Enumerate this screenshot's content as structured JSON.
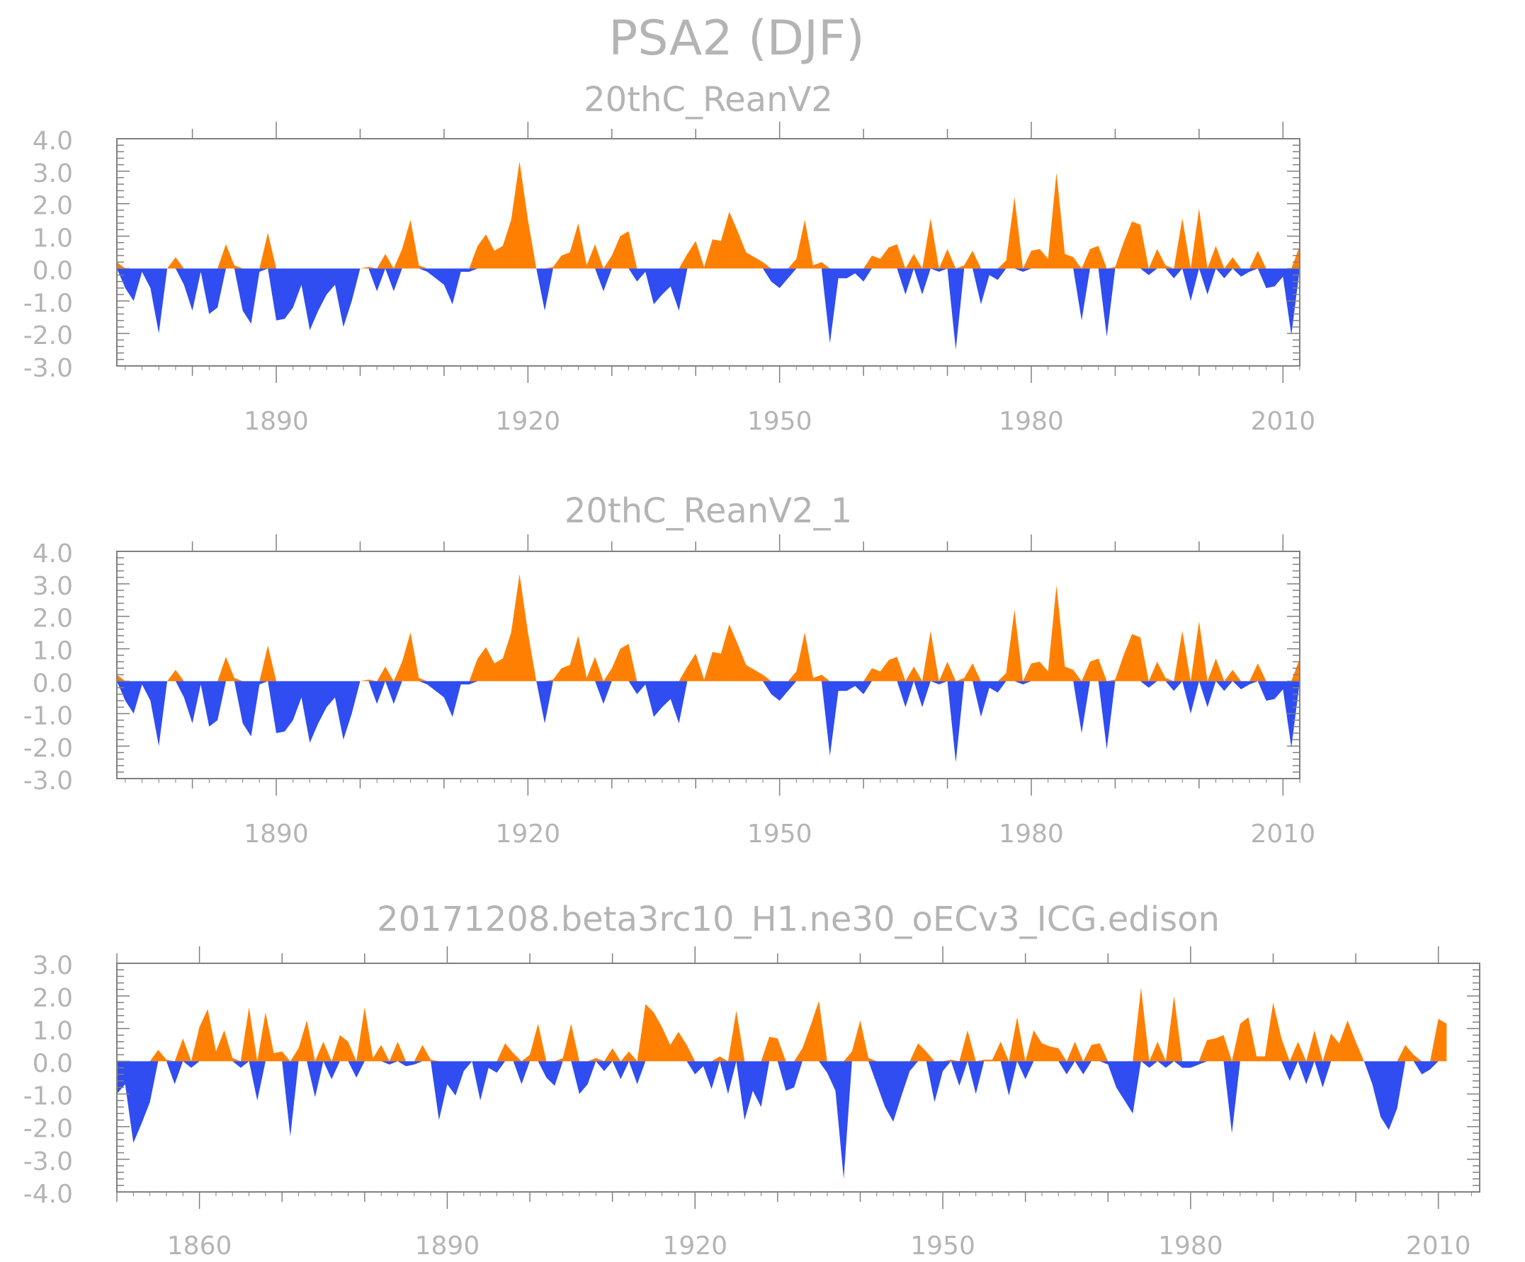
{
  "colors": {
    "positive": "#ff8000",
    "negative": "#2f4df0",
    "axis": "#808080",
    "text": "#b4b4b4"
  },
  "chart_data": {
    "type": "area",
    "title": "PSA2 (DJF)",
    "panels": [
      {
        "title": "20thC_ReanV2",
        "xlim": [
          1871,
          2012
        ],
        "ylim": [
          -3.0,
          4.0
        ],
        "yticks": [
          "4.0",
          "3.0",
          "2.0",
          "1.0",
          "0.0",
          "-1.0",
          "-2.0",
          "-3.0"
        ],
        "xtick_labels": [
          "1890",
          "1920",
          "1950",
          "1980",
          "2010"
        ],
        "x_start": 1871,
        "values": [
          0.2,
          -0.6,
          -1.0,
          -0.1,
          -0.6,
          -2.0,
          0.0,
          0.35,
          -0.5,
          -1.3,
          -0.1,
          -1.4,
          -1.2,
          0.75,
          0.1,
          -1.3,
          -1.7,
          -0.1,
          1.1,
          -1.6,
          -1.55,
          -1.2,
          -0.5,
          -1.9,
          -1.3,
          -0.8,
          -0.5,
          -1.8,
          -1.0,
          0.0,
          0.05,
          -0.7,
          0.45,
          -0.7,
          0.6,
          1.5,
          0.1,
          -0.1,
          -0.3,
          -0.5,
          -1.1,
          -0.1,
          -0.1,
          0.7,
          1.05,
          0.55,
          0.7,
          1.5,
          3.3,
          1.5,
          0.0,
          -1.3,
          0.05,
          0.4,
          0.5,
          1.4,
          0.1,
          0.75,
          -0.7,
          0.4,
          1.0,
          1.15,
          -0.4,
          -0.1,
          -1.1,
          -0.8,
          -0.55,
          -1.3,
          0.45,
          0.85,
          0.05,
          0.9,
          0.85,
          1.75,
          1.15,
          0.5,
          0.35,
          0.2,
          -0.4,
          -0.6,
          -0.3,
          0.3,
          1.5,
          0.1,
          0.2,
          -2.3,
          -0.3,
          -0.3,
          -0.15,
          -0.4,
          0.4,
          0.3,
          0.65,
          0.75,
          -0.8,
          0.45,
          -0.8,
          1.55,
          -0.1,
          0.6,
          -2.5,
          0.1,
          0.55,
          -1.1,
          -0.2,
          -0.35,
          0.25,
          2.2,
          -0.1,
          0.55,
          0.6,
          0.3,
          2.95,
          0.45,
          0.35,
          -1.6,
          0.6,
          0.7,
          -2.1,
          0.05,
          0.8,
          1.45,
          1.35,
          -0.2,
          0.6,
          0.1,
          -0.3,
          1.55,
          -1.0,
          1.85,
          -0.8,
          0.7,
          -0.3,
          0.35,
          -0.25,
          -0.1,
          0.55,
          -0.6,
          -0.55,
          -0.25,
          -2.05,
          0.7
        ]
      },
      {
        "title": "20thC_ReanV2_1",
        "xlim": [
          1871,
          2012
        ],
        "ylim": [
          -3.0,
          4.0
        ],
        "yticks": [
          "4.0",
          "3.0",
          "2.0",
          "1.0",
          "0.0",
          "-1.0",
          "-2.0",
          "-3.0"
        ],
        "xtick_labels": [
          "1890",
          "1920",
          "1950",
          "1980",
          "2010"
        ],
        "x_start": 1871,
        "values": [
          0.2,
          -0.6,
          -1.0,
          -0.1,
          -0.6,
          -2.0,
          0.0,
          0.35,
          -0.5,
          -1.3,
          -0.1,
          -1.4,
          -1.2,
          0.75,
          0.1,
          -1.3,
          -1.7,
          -0.1,
          1.1,
          -1.6,
          -1.55,
          -1.2,
          -0.5,
          -1.9,
          -1.3,
          -0.8,
          -0.5,
          -1.8,
          -1.0,
          0.0,
          0.05,
          -0.7,
          0.45,
          -0.7,
          0.6,
          1.5,
          0.1,
          -0.1,
          -0.3,
          -0.5,
          -1.1,
          -0.1,
          -0.1,
          0.7,
          1.05,
          0.55,
          0.7,
          1.5,
          3.3,
          1.5,
          0.0,
          -1.3,
          0.05,
          0.4,
          0.5,
          1.4,
          0.1,
          0.75,
          -0.7,
          0.4,
          1.0,
          1.15,
          -0.4,
          -0.1,
          -1.1,
          -0.8,
          -0.55,
          -1.3,
          0.45,
          0.85,
          0.05,
          0.9,
          0.85,
          1.75,
          1.15,
          0.5,
          0.35,
          0.2,
          -0.4,
          -0.6,
          -0.3,
          0.3,
          1.5,
          0.1,
          0.2,
          -2.3,
          -0.3,
          -0.3,
          -0.15,
          -0.4,
          0.4,
          0.3,
          0.65,
          0.75,
          -0.8,
          0.45,
          -0.8,
          1.55,
          -0.1,
          0.6,
          -2.5,
          0.1,
          0.55,
          -1.1,
          -0.2,
          -0.35,
          0.25,
          2.2,
          -0.1,
          0.55,
          0.6,
          0.3,
          2.95,
          0.45,
          0.35,
          -1.6,
          0.6,
          0.7,
          -2.1,
          0.05,
          0.8,
          1.45,
          1.35,
          -0.2,
          0.6,
          0.1,
          -0.3,
          1.55,
          -1.0,
          1.85,
          -0.8,
          0.7,
          -0.3,
          0.35,
          -0.25,
          -0.1,
          0.55,
          -0.6,
          -0.55,
          -0.25,
          -2.05,
          0.7
        ]
      },
      {
        "title": "20171208.beta3rc10_H1.ne30_oECv3_ICG.edison",
        "xlim": [
          1850,
          2015
        ],
        "ylim": [
          -4.0,
          3.0
        ],
        "yticks": [
          "3.0",
          "2.0",
          "1.0",
          "0.0",
          "-1.0",
          "-2.0",
          "-3.0",
          "-4.0"
        ],
        "xtick_labels": [
          "1860",
          "1890",
          "1920",
          "1950",
          "1980",
          "2010"
        ],
        "x_start": 1850,
        "values": [
          -1.0,
          -0.7,
          -2.5,
          -1.9,
          -1.25,
          0.35,
          0.05,
          -0.7,
          0.7,
          -0.2,
          1.05,
          1.6,
          0.3,
          0.95,
          0.1,
          -0.2,
          1.65,
          -1.2,
          1.5,
          0.25,
          0.3,
          -2.3,
          0.4,
          1.25,
          -1.1,
          0.6,
          -0.55,
          0.8,
          0.6,
          -0.5,
          1.65,
          0.1,
          0.5,
          -0.1,
          0.6,
          -0.15,
          -0.1,
          0.5,
          0.05,
          -1.8,
          -0.7,
          -1.05,
          -0.3,
          0.0,
          -1.2,
          -0.2,
          -0.35,
          0.55,
          0.25,
          -0.7,
          0.2,
          1.15,
          -0.5,
          -0.75,
          0.1,
          1.15,
          -1.0,
          -0.7,
          0.1,
          -0.3,
          0.4,
          -0.55,
          0.3,
          -0.7,
          1.75,
          1.5,
          1.05,
          0.5,
          0.9,
          0.5,
          -0.4,
          -0.15,
          -0.85,
          0.15,
          -1.0,
          1.55,
          -1.8,
          -0.9,
          -1.4,
          0.75,
          0.7,
          -0.9,
          -0.8,
          0.4,
          1.1,
          1.85,
          -0.35,
          -0.9,
          -3.6,
          0.3,
          1.25,
          0.1,
          -0.7,
          -1.4,
          -1.85,
          -1.05,
          -0.3,
          0.55,
          0.3,
          -1.25,
          -0.3,
          0.05,
          -0.75,
          0.95,
          -1.0,
          0.05,
          0.05,
          0.6,
          -1.05,
          1.35,
          -0.55,
          0.95,
          0.55,
          0.45,
          0.4,
          -0.4,
          0.6,
          -0.4,
          0.5,
          0.55,
          -0.1,
          -0.8,
          -1.2,
          -1.6,
          2.25,
          -0.2,
          0.6,
          -0.2,
          2.0,
          -0.2,
          -0.2,
          -0.1,
          0.65,
          0.7,
          0.8,
          -2.2,
          1.15,
          1.35,
          0.15,
          0.15,
          1.8,
          0.7,
          -0.6,
          0.6,
          -0.7,
          0.95,
          -0.8,
          0.85,
          0.55,
          1.25,
          0.6,
          0.0,
          -0.7,
          -1.7,
          -2.1,
          -1.45,
          0.5,
          0.2,
          -0.4,
          -0.25,
          1.3,
          1.15
        ]
      }
    ]
  }
}
